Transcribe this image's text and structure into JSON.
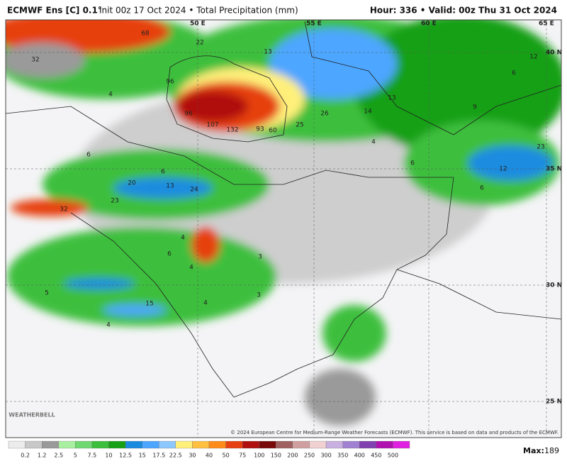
{
  "header": {
    "model": "ECMWF Ens [C] 0.1°",
    "info": "Init 00z 17 Oct 2024 • Total Precipitation (mm)",
    "valid": "Hour: 336 • Valid: 00z Thu 31 Oct 2024"
  },
  "grid_labels": [
    "50 E",
    "55 E",
    "60 E",
    "65 E",
    "40 N",
    "35 N",
    "30 N",
    "25 N"
  ],
  "map_labels": [
    "68",
    "32",
    "22",
    "13",
    "12",
    "4",
    "96",
    "96",
    "107",
    "132",
    "93",
    "60",
    "25",
    "26",
    "13",
    "14",
    "9",
    "6",
    "4",
    "6",
    "23",
    "12",
    "6",
    "6",
    "6",
    "20",
    "13",
    "24",
    "23",
    "32",
    "4",
    "6",
    "4",
    "3",
    "3",
    "4",
    "5",
    "15",
    "4"
  ],
  "logo": "WEATHERBELL",
  "copyright": "© 2024 European Centre for Medium-Range Weather Forecasts (ECMWF). This service is based on data and products of the ECMWF.",
  "colorbar": {
    "labels": [
      "0.2",
      "1.2",
      "2.5",
      "5",
      "7.5",
      "10",
      "12.5",
      "15",
      "17.5",
      "22.5",
      "30",
      "40",
      "50",
      "75",
      "100",
      "150",
      "200",
      "250",
      "300",
      "350",
      "400",
      "450",
      "500"
    ],
    "colors": [
      "#ececec",
      "#c8c8c8",
      "#9a9a9a",
      "#a8f0a0",
      "#70d870",
      "#3cbf3c",
      "#16a016",
      "#1a8ce0",
      "#4da6ff",
      "#8cc8ff",
      "#fff07a",
      "#ffc040",
      "#ff8c1a",
      "#e64010",
      "#b01010",
      "#7a0a0a",
      "#a06060",
      "#d0a0a0",
      "#f0d0d0",
      "#c8b0e0",
      "#a080d0",
      "#8040b0",
      "#b010b0",
      "#e020e0"
    ]
  },
  "max_label": "Max:",
  "max_value": 189
}
